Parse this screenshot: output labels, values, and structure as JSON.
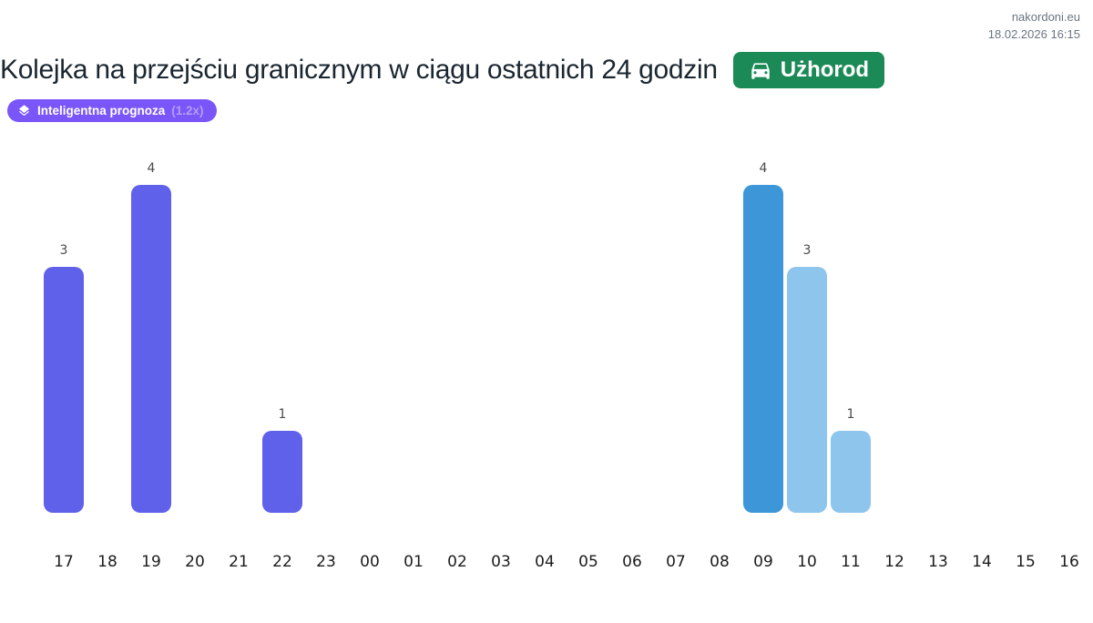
{
  "meta": {
    "site": "nakordoni.eu",
    "timestamp": "18.02.2026 16:15"
  },
  "header": {
    "title": "Kolejka na przejściu granicznym w ciągu ostatnich 24 godzin",
    "crossing_badge": {
      "label": "Użhorod"
    },
    "forecast_badge": {
      "label": "Inteligentna prognoza",
      "multiplier": "(1.2x)"
    }
  },
  "colors": {
    "badge_green": "#1c8a57",
    "pill_purple": "#7a55f7",
    "bar_purple": "#5f61eb",
    "bar_blue_dark": "#3c96d7",
    "bar_blue_light": "#8ec5ed",
    "title_text": "#1a2630",
    "meta_text": "#6a7580",
    "value_label": "#4a4a4a",
    "tick_label": "#1c1c1c"
  },
  "chart_data": {
    "type": "bar",
    "title": "Kolejka na przejściu granicznym w ciągu ostatnich 24 godzin",
    "categories": [
      "17",
      "18",
      "19",
      "20",
      "21",
      "22",
      "23",
      "00",
      "01",
      "02",
      "03",
      "04",
      "05",
      "06",
      "07",
      "08",
      "09",
      "10",
      "11",
      "12",
      "13",
      "14",
      "15",
      "16"
    ],
    "values": [
      3,
      0,
      4,
      0,
      0,
      1,
      0,
      0,
      0,
      0,
      0,
      0,
      0,
      0,
      0,
      0,
      4,
      3,
      1,
      0,
      0,
      0,
      0,
      0
    ],
    "bar_colors": [
      "#5f61eb",
      "",
      "#5f61eb",
      "",
      "",
      "#5f61eb",
      "",
      "",
      "",
      "",
      "",
      "",
      "",
      "",
      "",
      "",
      "#3c96d7",
      "#8ec5ed",
      "#8ec5ed",
      "",
      "",
      "",
      "",
      ""
    ],
    "value_labels": [
      3,
      null,
      4,
      null,
      null,
      1,
      null,
      null,
      null,
      null,
      null,
      null,
      null,
      null,
      null,
      null,
      4,
      3,
      1,
      null,
      null,
      null,
      null,
      null
    ],
    "xlabel": "",
    "ylabel": "",
    "ylim": [
      0,
      4
    ],
    "grid": false,
    "legend": null,
    "notes": "Past hours (17-22) purple bars; forecast hours: 09 dark blue, 10-11 light blue; hours with zero queue have no bar"
  }
}
